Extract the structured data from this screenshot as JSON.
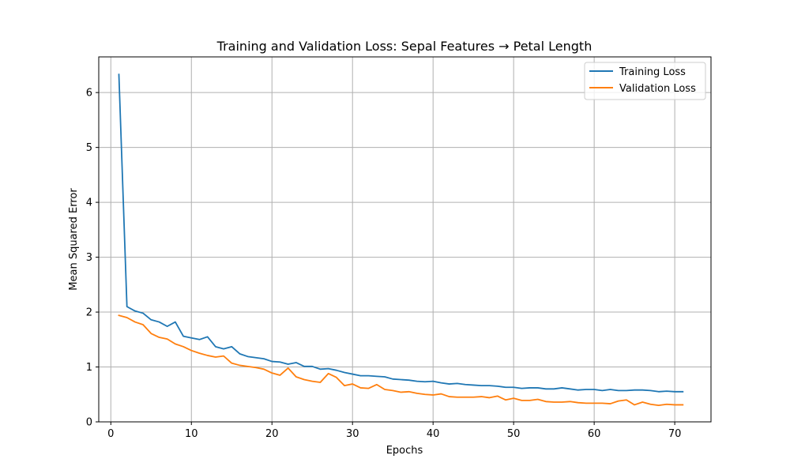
{
  "chart_data": {
    "type": "line",
    "title": "Training and Validation Loss: Sepal Features → Petal Length",
    "xlabel": "Epochs",
    "ylabel": "Mean Squared Error",
    "xlim": [
      -1.5,
      74.5
    ],
    "ylim": [
      0,
      6.65
    ],
    "xticks": [
      0,
      10,
      20,
      30,
      40,
      50,
      60,
      70
    ],
    "yticks": [
      0,
      1,
      2,
      3,
      4,
      5,
      6
    ],
    "grid": true,
    "legend_position": "top-right",
    "x": [
      1,
      2,
      3,
      4,
      5,
      6,
      7,
      8,
      9,
      10,
      11,
      12,
      13,
      14,
      15,
      16,
      17,
      18,
      19,
      20,
      21,
      22,
      23,
      24,
      25,
      26,
      27,
      28,
      29,
      30,
      31,
      32,
      33,
      34,
      35,
      36,
      37,
      38,
      39,
      40,
      41,
      42,
      43,
      44,
      45,
      46,
      47,
      48,
      49,
      50,
      51,
      52,
      53,
      54,
      55,
      56,
      57,
      58,
      59,
      60,
      61,
      62,
      63,
      64,
      65,
      66,
      67,
      68,
      69,
      70,
      71
    ],
    "series": [
      {
        "name": "Training Loss",
        "color": "#1f77b4",
        "values": [
          6.33,
          2.1,
          2.02,
          1.98,
          1.86,
          1.82,
          1.74,
          1.82,
          1.56,
          1.53,
          1.5,
          1.55,
          1.37,
          1.33,
          1.37,
          1.24,
          1.19,
          1.17,
          1.15,
          1.1,
          1.09,
          1.05,
          1.08,
          1.01,
          1.01,
          0.96,
          0.97,
          0.94,
          0.9,
          0.87,
          0.84,
          0.84,
          0.83,
          0.82,
          0.78,
          0.77,
          0.76,
          0.74,
          0.73,
          0.74,
          0.71,
          0.69,
          0.7,
          0.68,
          0.67,
          0.66,
          0.66,
          0.65,
          0.63,
          0.63,
          0.61,
          0.62,
          0.62,
          0.6,
          0.6,
          0.62,
          0.6,
          0.58,
          0.59,
          0.59,
          0.57,
          0.59,
          0.57,
          0.57,
          0.58,
          0.58,
          0.57,
          0.55,
          0.56,
          0.55,
          0.55
        ]
      },
      {
        "name": "Validation Loss",
        "color": "#ff7f0e",
        "values": [
          1.94,
          1.9,
          1.82,
          1.77,
          1.61,
          1.54,
          1.51,
          1.42,
          1.37,
          1.3,
          1.25,
          1.21,
          1.18,
          1.2,
          1.07,
          1.03,
          1.01,
          0.99,
          0.96,
          0.89,
          0.85,
          0.98,
          0.82,
          0.77,
          0.74,
          0.72,
          0.88,
          0.81,
          0.66,
          0.69,
          0.62,
          0.61,
          0.68,
          0.59,
          0.57,
          0.54,
          0.55,
          0.52,
          0.5,
          0.49,
          0.51,
          0.46,
          0.45,
          0.45,
          0.45,
          0.46,
          0.44,
          0.47,
          0.4,
          0.43,
          0.39,
          0.39,
          0.41,
          0.37,
          0.36,
          0.36,
          0.37,
          0.35,
          0.34,
          0.34,
          0.34,
          0.33,
          0.38,
          0.4,
          0.31,
          0.36,
          0.32,
          0.3,
          0.32,
          0.31,
          0.31
        ]
      }
    ]
  }
}
